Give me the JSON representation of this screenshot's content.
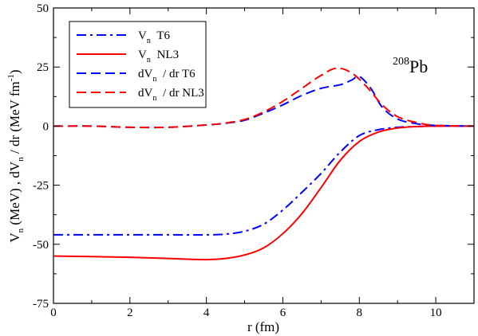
{
  "chart_data": {
    "type": "line",
    "title": "",
    "annotation": {
      "sup": "208",
      "main": "Pb"
    },
    "xlabel": "r (fm)",
    "ylabel": "V_n (MeV) ,  dV_n / dr (MeV fm^-1)",
    "xlim": [
      0,
      11
    ],
    "ylim": [
      -75,
      50
    ],
    "xticks": [
      0,
      2,
      4,
      6,
      8,
      10
    ],
    "yticks": [
      -75,
      -50,
      -25,
      0,
      25,
      50
    ],
    "legend_position": "top-left",
    "series": [
      {
        "name": "V_n  T6",
        "legend": {
          "base": "V",
          "sub": "n",
          "rest": "T6"
        },
        "color": "#0000ff",
        "dash": "dashdot",
        "x": [
          0,
          1,
          2,
          3,
          4,
          4.5,
          5,
          5.5,
          6,
          6.5,
          7,
          7.5,
          8,
          8.5,
          9,
          9.5,
          10,
          11
        ],
        "y": [
          -46,
          -46,
          -46,
          -46,
          -46,
          -45.7,
          -44.5,
          -41.5,
          -35.5,
          -28,
          -20,
          -11,
          -4,
          -1.5,
          -0.5,
          -0.2,
          0,
          0
        ]
      },
      {
        "name": "V_n  NL3",
        "legend": {
          "base": "V",
          "sub": "n",
          "rest": "NL3"
        },
        "color": "#ff0000",
        "dash": "solid",
        "x": [
          0,
          1,
          2,
          3,
          4,
          4.5,
          5,
          5.5,
          6,
          6.5,
          7,
          7.5,
          8,
          8.5,
          9,
          9.5,
          10,
          11
        ],
        "y": [
          -55,
          -55.2,
          -55.5,
          -56,
          -56.5,
          -56,
          -54.5,
          -51.5,
          -45.5,
          -37,
          -26,
          -14.5,
          -6.5,
          -2.5,
          -0.8,
          -0.2,
          0,
          0
        ]
      },
      {
        "name": "dV_n / dr  T6",
        "legend": {
          "base": "dV",
          "sub": "n",
          "rest": "/ dr   T6"
        },
        "color": "#0000ff",
        "dash": "dashed",
        "x": [
          0,
          1,
          2,
          3,
          4,
          4.5,
          5,
          5.5,
          6,
          6.5,
          7,
          7.5,
          7.8,
          8,
          8.3,
          8.6,
          9,
          9.5,
          10,
          11
        ],
        "y": [
          0,
          0,
          -0.5,
          -0.5,
          0.5,
          1.2,
          2.5,
          5.5,
          9,
          13,
          16,
          17.5,
          19.5,
          21,
          16,
          8,
          3,
          1,
          0.3,
          0
        ]
      },
      {
        "name": "dV_n / dr  NL3",
        "legend": {
          "base": "dV",
          "sub": "n",
          "rest": "/ dr   NL3"
        },
        "color": "#ff0000",
        "dash": "dashed",
        "x": [
          0,
          1,
          2,
          3,
          4,
          4.5,
          5,
          5.5,
          6,
          6.5,
          7,
          7.4,
          7.8,
          8.2,
          8.6,
          9,
          9.5,
          10,
          11
        ],
        "y": [
          0,
          0,
          -0.5,
          -0.5,
          0.5,
          1.3,
          2.8,
          6,
          10.5,
          16,
          21.5,
          24.5,
          22.5,
          16.5,
          9,
          4,
          1.5,
          0.3,
          0
        ]
      }
    ]
  }
}
